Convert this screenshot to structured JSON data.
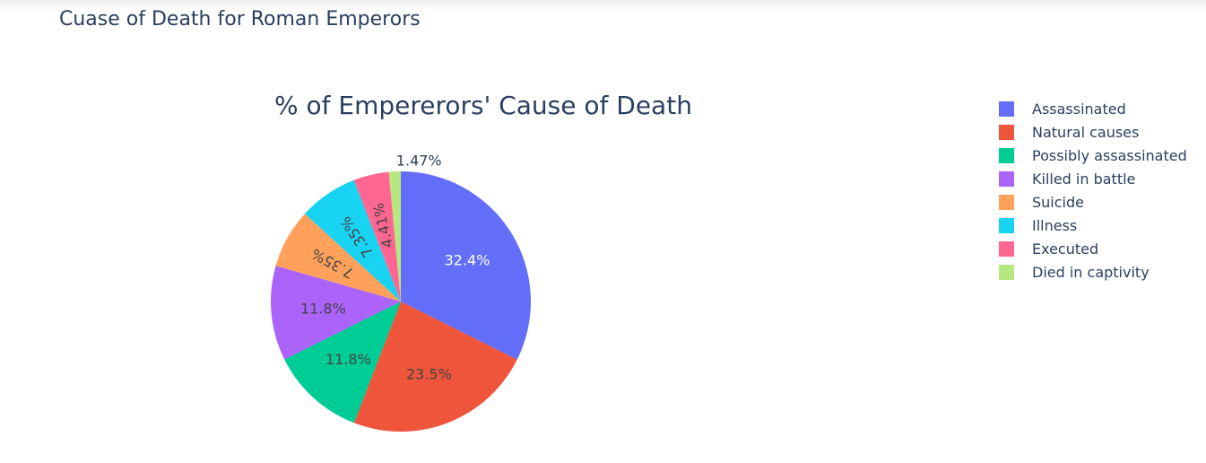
{
  "page": {
    "title": "Cuase of Death for Roman Emperors"
  },
  "chart_data": {
    "type": "pie",
    "title": "% of Empererors' Cause of Death",
    "legend_position": "right",
    "sort": "descending",
    "direction": "clockwise",
    "slices": [
      {
        "label": "Assassinated",
        "percent": 32.4,
        "text": "32.4%",
        "color": "#636efa",
        "text_color": "#ffffff"
      },
      {
        "label": "Natural causes",
        "percent": 23.5,
        "text": "23.5%",
        "color": "#ef553b",
        "text_color": "#444444"
      },
      {
        "label": "Possibly assassinated",
        "percent": 11.8,
        "text": "11.8%",
        "color": "#00cc96",
        "text_color": "#444444"
      },
      {
        "label": "Killed in battle",
        "percent": 11.8,
        "text": "11.8%",
        "color": "#ab63fa",
        "text_color": "#444444"
      },
      {
        "label": "Suicide",
        "percent": 7.35,
        "text": "7.35%",
        "color": "#ffa15a",
        "text_color": "#444444"
      },
      {
        "label": "Illness",
        "percent": 7.35,
        "text": "7.35%",
        "color": "#19d3f3",
        "text_color": "#444444"
      },
      {
        "label": "Executed",
        "percent": 4.41,
        "text": "4.41%",
        "color": "#ff6692",
        "text_color": "#444444"
      },
      {
        "label": "Died in captivity",
        "percent": 1.47,
        "text": "1.47%",
        "color": "#b6e880",
        "text_color": "#2a3f5f"
      }
    ]
  }
}
